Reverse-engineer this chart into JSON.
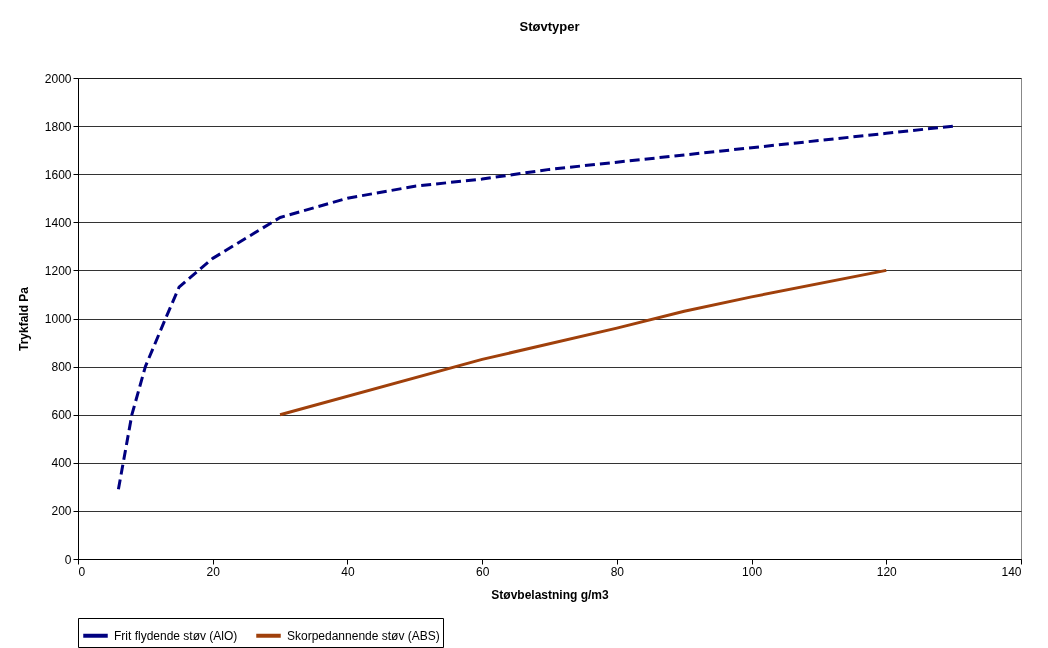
{
  "chart_data": {
    "type": "line",
    "title": "Støvtyper",
    "xlabel": "Støvbelastning g/m3",
    "ylabel": "Trykfald Pa",
    "xlim": [
      0,
      140
    ],
    "xticks": [
      0,
      20,
      40,
      60,
      80,
      100,
      120,
      140
    ],
    "ylim": [
      0,
      2000
    ],
    "yticks": [
      0,
      200,
      400,
      600,
      800,
      1000,
      1200,
      1400,
      1600,
      1800,
      2000
    ],
    "grid": "y",
    "legend": "bottom",
    "marker": "none",
    "series": [
      {
        "name": "Frit flydende støv (AlO)",
        "color": "#000080",
        "line_style": "dashed",
        "x": [
          6,
          8,
          10,
          13,
          15,
          20,
          30,
          40,
          50,
          60,
          70,
          80,
          90,
          100,
          110,
          120,
          130
        ],
        "values": [
          290,
          600,
          800,
          1000,
          1130,
          1250,
          1420,
          1500,
          1550,
          1580,
          1620,
          1650,
          1680,
          1710,
          1740,
          1770,
          1800
        ]
      },
      {
        "name": "Skorpedannende støv (ABS)",
        "color": "#a0400b",
        "line_style": "solid",
        "x": [
          30,
          60,
          80,
          90,
          100,
          120
        ],
        "values": [
          600,
          830,
          960,
          1030,
          1090,
          1200
        ]
      }
    ]
  }
}
